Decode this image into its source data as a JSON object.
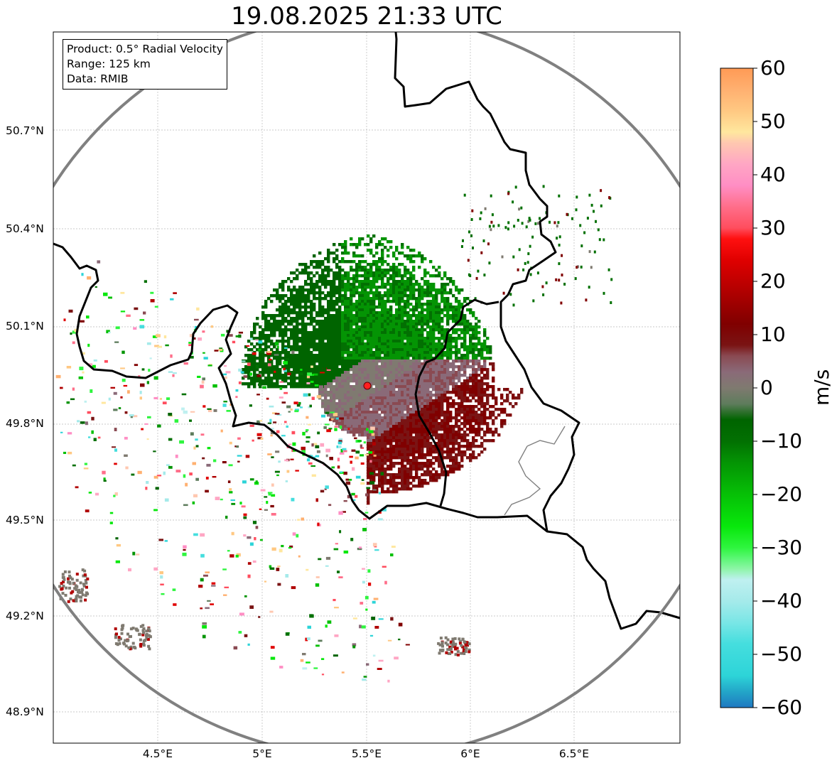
{
  "title": "19.08.2025 21:33 UTC",
  "info": {
    "product": "Product: 0.5° Radial Velocity",
    "range": "Range: 125 km",
    "source": "Data: RMIB"
  },
  "lat_ticks": [
    "50.7°N",
    "50.4°N",
    "50.1°N",
    "49.8°N",
    "49.5°N",
    "49.2°N",
    "48.9°N"
  ],
  "lon_ticks": [
    "4.5°E",
    "5°E",
    "5.5°E",
    "6°E",
    "6.5°E"
  ],
  "colorbar": {
    "unit": "m/s",
    "min": -60,
    "max": 60,
    "tick_labels": [
      "60",
      "50",
      "40",
      "30",
      "20",
      "10",
      "0",
      "−10",
      "−20",
      "−30",
      "−40",
      "−50",
      "−60"
    ],
    "stops": [
      {
        "v": -60,
        "color": "#1f78c1"
      },
      {
        "v": -57,
        "color": "#23a6c8"
      },
      {
        "v": -54,
        "color": "#2dd4d8"
      },
      {
        "v": -48,
        "color": "#45dede"
      },
      {
        "v": -44,
        "color": "#7ae6e6"
      },
      {
        "v": -40,
        "color": "#a5eaea"
      },
      {
        "v": -36,
        "color": "#bff0f0"
      },
      {
        "v": -34,
        "color": "#8ef5a8"
      },
      {
        "v": -32,
        "color": "#5cf775"
      },
      {
        "v": -30,
        "color": "#2ff53f"
      },
      {
        "v": -26,
        "color": "#08e80c"
      },
      {
        "v": -20,
        "color": "#06c006"
      },
      {
        "v": -14,
        "color": "#049404"
      },
      {
        "v": -10,
        "color": "#027002"
      },
      {
        "v": -6,
        "color": "#006400"
      },
      {
        "v": -3,
        "color": "#5e7c5c"
      },
      {
        "v": 0,
        "color": "#7f7a70"
      },
      {
        "v": 3,
        "color": "#8a6a78"
      },
      {
        "v": 6,
        "color": "#8a4a52"
      },
      {
        "v": 8,
        "color": "#7a1414"
      },
      {
        "v": 12,
        "color": "#800000"
      },
      {
        "v": 18,
        "color": "#b00000"
      },
      {
        "v": 24,
        "color": "#e00000"
      },
      {
        "v": 28,
        "color": "#ff1010"
      },
      {
        "v": 30,
        "color": "#ff4d5e"
      },
      {
        "v": 34,
        "color": "#ff6e8a"
      },
      {
        "v": 38,
        "color": "#ff8ec4"
      },
      {
        "v": 42,
        "color": "#ffa6c4"
      },
      {
        "v": 46,
        "color": "#ffc8b0"
      },
      {
        "v": 48,
        "color": "#ffe79e"
      },
      {
        "v": 52,
        "color": "#ffc882"
      },
      {
        "v": 56,
        "color": "#ffb070"
      },
      {
        "v": 60,
        "color": "#ff9a55"
      }
    ]
  },
  "colors": {
    "frame": "#000000",
    "grid": "#b0b0b0",
    "range_ring": "#808080",
    "border": "#000000",
    "minor_border": "#808080",
    "radar_site": "#ff2020"
  },
  "radar": {
    "lat": 49.914,
    "lon": 5.506
  }
}
